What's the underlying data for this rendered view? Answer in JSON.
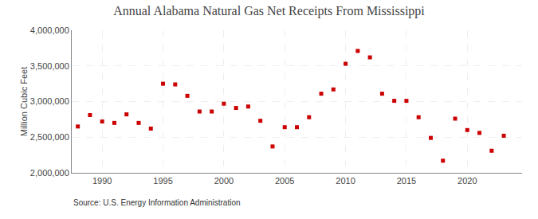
{
  "chart_data": {
    "type": "scatter",
    "title": "Annual Alabama Natural Gas Net Receipts From Mississippi",
    "ylabel": "Million Cubic Feet",
    "annotations": [
      "Source: U.S. Energy Information Administration"
    ],
    "x": [
      1988,
      1989,
      1990,
      1991,
      1992,
      1993,
      1994,
      1995,
      1996,
      1997,
      1998,
      1999,
      2000,
      2001,
      2002,
      2003,
      2004,
      2005,
      2006,
      2007,
      2008,
      2009,
      2010,
      2011,
      2012,
      2013,
      2014,
      2015,
      2016,
      2017,
      2018,
      2019,
      2020,
      2021,
      2022,
      2023
    ],
    "values": [
      2650000,
      2810000,
      2720000,
      2700000,
      2820000,
      2700000,
      2620000,
      3250000,
      3240000,
      3080000,
      2860000,
      2860000,
      2970000,
      2910000,
      2930000,
      2730000,
      2370000,
      2640000,
      2640000,
      2780000,
      3110000,
      3170000,
      3530000,
      3710000,
      3620000,
      3110000,
      3010000,
      3010000,
      2780000,
      2490000,
      2170000,
      2760000,
      2600000,
      2560000,
      2310000,
      2520000
    ],
    "color": "#cc0000",
    "marker": "square",
    "xlim": [
      1987.5,
      2024.5
    ],
    "ylim": [
      2000000,
      4000000
    ],
    "xticks": [
      1990,
      1995,
      2000,
      2005,
      2010,
      2015,
      2020
    ],
    "yticks": [
      {
        "value": 2000000,
        "label": "2,000,000"
      },
      {
        "value": 2500000,
        "label": "2,500,000"
      },
      {
        "value": 3000000,
        "label": "3,000,000"
      },
      {
        "value": 3500000,
        "label": "3,500,000"
      },
      {
        "value": 4000000,
        "label": "4,000,000"
      }
    ],
    "grid": true
  }
}
